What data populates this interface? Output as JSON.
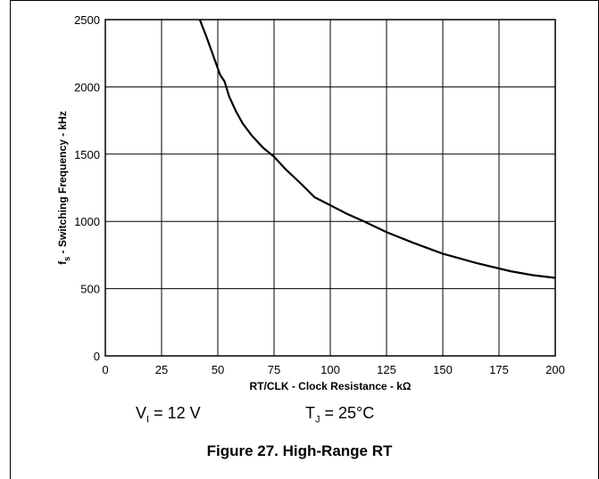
{
  "chart_data": {
    "type": "line",
    "title": "Figure 27. High-Range RT",
    "xlabel": "RT/CLK - Clock Resistance - kΩ",
    "ylabel": "f_s - Switching Frequency - kHz",
    "ylabel_main": "f",
    "ylabel_sub": "s",
    "ylabel_rest": " - Switching Frequency - kHz",
    "xlim": [
      0,
      200
    ],
    "ylim": [
      0,
      2500
    ],
    "xticks": [
      0,
      25,
      50,
      75,
      100,
      125,
      150,
      175,
      200
    ],
    "yticks": [
      0,
      500,
      1000,
      1500,
      2000,
      2500
    ],
    "grid": true,
    "series": [
      {
        "x": [
          42,
          45,
          48,
          51,
          53,
          55,
          58,
          61,
          65,
          70,
          75,
          80,
          87,
          93,
          100,
          107,
          115,
          125,
          137,
          150,
          165,
          180,
          190,
          200
        ],
        "y": [
          2500,
          2370,
          2230,
          2090,
          2040,
          1930,
          1820,
          1730,
          1640,
          1550,
          1480,
          1390,
          1280,
          1180,
          1120,
          1060,
          1000,
          920,
          840,
          760,
          690,
          630,
          600,
          580
        ]
      }
    ]
  },
  "conditions": {
    "vi_main": "V",
    "vi_sub": "I",
    "vi_rest": " = 12 V",
    "tj_main": "T",
    "tj_sub": "J",
    "tj_rest": " = 25°C"
  },
  "caption": "Figure 27. High-Range RT"
}
